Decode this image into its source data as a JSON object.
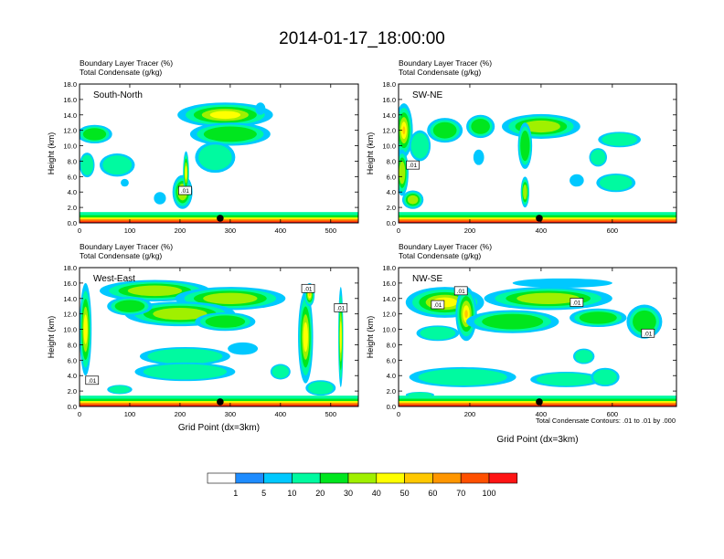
{
  "title": "2014-01-17_18:00:00",
  "contour_note": "Total Condensate Contours: .01 to .01 by .000",
  "colorbar": {
    "colors": [
      "#ffffff",
      "#1e8cff",
      "#00c8ff",
      "#00faa0",
      "#00e61e",
      "#a0f000",
      "#ffff00",
      "#ffc800",
      "#ff9600",
      "#ff5000",
      "#ff1414"
    ],
    "labels": [
      "1",
      "5",
      "10",
      "20",
      "30",
      "40",
      "50",
      "60",
      "70",
      "100"
    ]
  },
  "chart_data": [
    {
      "type": "heatmap",
      "label": "South-North",
      "title_line1": "Boundary Layer Tracer   (%)",
      "title_line2": "Total Condensate   (g/kg)",
      "ylabel": "Height (km)",
      "xlabel": "",
      "xlim": [
        0,
        555
      ],
      "ylim": [
        0,
        18
      ],
      "xticks": [
        0,
        100,
        200,
        300,
        400,
        500
      ],
      "yticks": [
        "0.0",
        "2.0",
        "4.0",
        "6.0",
        "8.0",
        "10.0",
        "12.0",
        "14.0",
        "16.0",
        "18.0"
      ],
      "marker_x": 280,
      "contour_labels": [
        {
          "x": 210,
          "y": 4.2,
          "text": ".01"
        }
      ],
      "clouds": [
        {
          "x": 30,
          "y": 11.5,
          "rx": 35,
          "ry": 1.2,
          "v": 20
        },
        {
          "x": 15,
          "y": 7.5,
          "rx": 15,
          "ry": 1.6,
          "v": 15
        },
        {
          "x": 75,
          "y": 7.5,
          "rx": 35,
          "ry": 1.5,
          "v": 10
        },
        {
          "x": 290,
          "y": 14.0,
          "rx": 95,
          "ry": 1.6,
          "v": 40
        },
        {
          "x": 300,
          "y": 11.5,
          "rx": 80,
          "ry": 1.5,
          "v": 25
        },
        {
          "x": 270,
          "y": 8.5,
          "rx": 40,
          "ry": 2.0,
          "v": 15
        },
        {
          "x": 360,
          "y": 14.8,
          "rx": 10,
          "ry": 0.8,
          "v": 8
        },
        {
          "x": 205,
          "y": 4.0,
          "rx": 20,
          "ry": 2.2,
          "v": 30
        },
        {
          "x": 212,
          "y": 6.5,
          "rx": 6,
          "ry": 2.8,
          "v": 40
        },
        {
          "x": 160,
          "y": 3.2,
          "rx": 12,
          "ry": 0.8,
          "v": 8
        },
        {
          "x": 90,
          "y": 5.2,
          "rx": 8,
          "ry": 0.5,
          "v": 5
        }
      ]
    },
    {
      "type": "heatmap",
      "label": "SW-NE",
      "title_line1": "Boundary Layer Tracer   (%)",
      "title_line2": "Total Condensate   (g/kg)",
      "ylabel": "Height (km)",
      "xlabel": "",
      "xlim": [
        0,
        780
      ],
      "ylim": [
        0,
        18
      ],
      "xticks": [
        0,
        200,
        400,
        600
      ],
      "yticks": [
        "0.0",
        "2.0",
        "4.0",
        "6.0",
        "8.0",
        "10.0",
        "12.0",
        "14.0",
        "16.0",
        "18.0"
      ],
      "marker_x": 395,
      "contour_labels": [
        {
          "x": 40,
          "y": 7.5,
          "text": ".01"
        }
      ],
      "clouds": [
        {
          "x": 15,
          "y": 12.0,
          "rx": 25,
          "ry": 3.5,
          "v": 50
        },
        {
          "x": 10,
          "y": 6.5,
          "rx": 18,
          "ry": 3.0,
          "v": 30
        },
        {
          "x": 60,
          "y": 10.0,
          "rx": 30,
          "ry": 2.0,
          "v": 15
        },
        {
          "x": 130,
          "y": 12.0,
          "rx": 50,
          "ry": 1.6,
          "v": 25
        },
        {
          "x": 230,
          "y": 12.5,
          "rx": 40,
          "ry": 1.5,
          "v": 20
        },
        {
          "x": 400,
          "y": 12.5,
          "rx": 110,
          "ry": 1.6,
          "v": 35
        },
        {
          "x": 355,
          "y": 10.0,
          "rx": 20,
          "ry": 3.0,
          "v": 25
        },
        {
          "x": 620,
          "y": 10.8,
          "rx": 60,
          "ry": 1.0,
          "v": 12
        },
        {
          "x": 560,
          "y": 8.5,
          "rx": 25,
          "ry": 1.2,
          "v": 10
        },
        {
          "x": 610,
          "y": 5.2,
          "rx": 55,
          "ry": 1.2,
          "v": 10
        },
        {
          "x": 500,
          "y": 5.5,
          "rx": 20,
          "ry": 0.8,
          "v": 8
        },
        {
          "x": 355,
          "y": 4.0,
          "rx": 12,
          "ry": 2.0,
          "v": 30
        },
        {
          "x": 40,
          "y": 3.0,
          "rx": 30,
          "ry": 1.2,
          "v": 30
        },
        {
          "x": 225,
          "y": 8.5,
          "rx": 15,
          "ry": 1.0,
          "v": 8
        }
      ]
    },
    {
      "type": "heatmap",
      "label": "West-East",
      "title_line1": "Boundary Layer Tracer   (%)",
      "title_line2": "Total Condensate   (g/kg)",
      "ylabel": "Height (km)",
      "xlabel": "Grid Point (dx=3km)",
      "xlim": [
        0,
        555
      ],
      "ylim": [
        0,
        18
      ],
      "xticks": [
        0,
        100,
        200,
        300,
        400,
        500
      ],
      "yticks": [
        "0.0",
        "2.0",
        "4.0",
        "6.0",
        "8.0",
        "10.0",
        "12.0",
        "14.0",
        "16.0",
        "18.0"
      ],
      "marker_x": 280,
      "contour_labels": [
        {
          "x": 455,
          "y": 15.3,
          "text": ".01"
        },
        {
          "x": 520,
          "y": 12.8,
          "text": ".01"
        },
        {
          "x": 25,
          "y": 3.4,
          "text": ".01"
        }
      ],
      "clouds": [
        {
          "x": 150,
          "y": 15.0,
          "rx": 110,
          "ry": 1.4,
          "v": 30
        },
        {
          "x": 300,
          "y": 14.0,
          "rx": 110,
          "ry": 1.5,
          "v": 30
        },
        {
          "x": 200,
          "y": 12.0,
          "rx": 110,
          "ry": 1.6,
          "v": 30
        },
        {
          "x": 290,
          "y": 11.0,
          "rx": 60,
          "ry": 1.2,
          "v": 20
        },
        {
          "x": 100,
          "y": 13.0,
          "rx": 45,
          "ry": 1.2,
          "v": 25
        },
        {
          "x": 12,
          "y": 10.0,
          "rx": 12,
          "ry": 6.0,
          "v": 40
        },
        {
          "x": 210,
          "y": 6.5,
          "rx": 90,
          "ry": 1.2,
          "v": 15
        },
        {
          "x": 210,
          "y": 4.5,
          "rx": 100,
          "ry": 1.2,
          "v": 15
        },
        {
          "x": 325,
          "y": 7.5,
          "rx": 30,
          "ry": 0.8,
          "v": 8
        },
        {
          "x": 450,
          "y": 9.0,
          "rx": 15,
          "ry": 6.0,
          "v": 40
        },
        {
          "x": 458,
          "y": 14.5,
          "rx": 10,
          "ry": 1.5,
          "v": 50
        },
        {
          "x": 520,
          "y": 9.0,
          "rx": 5,
          "ry": 6.5,
          "v": 40
        },
        {
          "x": 400,
          "y": 4.5,
          "rx": 20,
          "ry": 1.0,
          "v": 10
        },
        {
          "x": 80,
          "y": 2.2,
          "rx": 25,
          "ry": 0.6,
          "v": 12
        },
        {
          "x": 480,
          "y": 2.4,
          "rx": 30,
          "ry": 1.0,
          "v": 15
        }
      ]
    },
    {
      "type": "heatmap",
      "label": "NW-SE",
      "title_line1": "Boundary Layer Tracer   (%)",
      "title_line2": "Total Condensate   (g/kg)",
      "ylabel": "Height (km)",
      "xlabel": "Grid Point (dx=3km)",
      "xlim": [
        0,
        780
      ],
      "ylim": [
        0,
        18
      ],
      "xticks": [
        0,
        200,
        400,
        600
      ],
      "yticks": [
        "0.0",
        "2.0",
        "4.0",
        "6.0",
        "8.0",
        "10.0",
        "12.0",
        "14.0",
        "16.0",
        "18.0"
      ],
      "marker_x": 395,
      "contour_labels": [
        {
          "x": 175,
          "y": 15.0,
          "text": ".01"
        },
        {
          "x": 110,
          "y": 13.2,
          "text": ".01"
        },
        {
          "x": 500,
          "y": 13.5,
          "text": ".01"
        },
        {
          "x": 700,
          "y": 9.5,
          "text": ".01"
        }
      ],
      "clouds": [
        {
          "x": 130,
          "y": 13.5,
          "rx": 110,
          "ry": 2.0,
          "v": 45
        },
        {
          "x": 190,
          "y": 12.0,
          "rx": 30,
          "ry": 3.5,
          "v": 50
        },
        {
          "x": 420,
          "y": 14.0,
          "rx": 180,
          "ry": 1.5,
          "v": 35
        },
        {
          "x": 320,
          "y": 11.0,
          "rx": 130,
          "ry": 1.5,
          "v": 25
        },
        {
          "x": 560,
          "y": 11.5,
          "rx": 80,
          "ry": 1.2,
          "v": 25
        },
        {
          "x": 690,
          "y": 11.0,
          "rx": 50,
          "ry": 2.2,
          "v": 20
        },
        {
          "x": 460,
          "y": 16.0,
          "rx": 140,
          "ry": 0.6,
          "v": 8
        },
        {
          "x": 110,
          "y": 9.5,
          "rx": 60,
          "ry": 1.0,
          "v": 12
        },
        {
          "x": 180,
          "y": 3.8,
          "rx": 150,
          "ry": 1.3,
          "v": 18
        },
        {
          "x": 470,
          "y": 3.5,
          "rx": 100,
          "ry": 1.0,
          "v": 15
        },
        {
          "x": 580,
          "y": 3.8,
          "rx": 40,
          "ry": 1.2,
          "v": 18
        },
        {
          "x": 520,
          "y": 6.5,
          "rx": 30,
          "ry": 1.0,
          "v": 10
        },
        {
          "x": 60,
          "y": 1.5,
          "rx": 40,
          "ry": 0.4,
          "v": 10
        }
      ]
    }
  ]
}
